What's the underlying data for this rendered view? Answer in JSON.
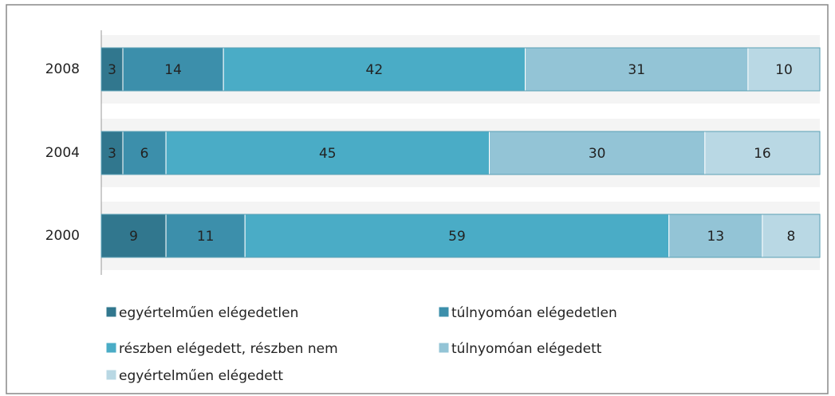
{
  "chart_data": {
    "type": "stacked_bar_horizontal",
    "categories": [
      "2008",
      "2004",
      "2000"
    ],
    "series": [
      {
        "name": "egyértelműen elégedetlen",
        "color": "#31778e",
        "values": [
          3,
          3,
          9
        ]
      },
      {
        "name": "túlnyomóan elégedetlen",
        "color": "#3c8fab",
        "values": [
          14,
          6,
          11
        ]
      },
      {
        "name": "részben elégedett, részben nem",
        "color": "#4aacc6",
        "values": [
          42,
          45,
          59
        ]
      },
      {
        "name": "túlnyomóan elégedett",
        "color": "#93c4d6",
        "values": [
          31,
          30,
          13
        ]
      },
      {
        "name": "egyértelműen elégedett",
        "color": "#b9d8e4",
        "values": [
          10,
          16,
          8
        ]
      }
    ],
    "legend": "bottom"
  }
}
